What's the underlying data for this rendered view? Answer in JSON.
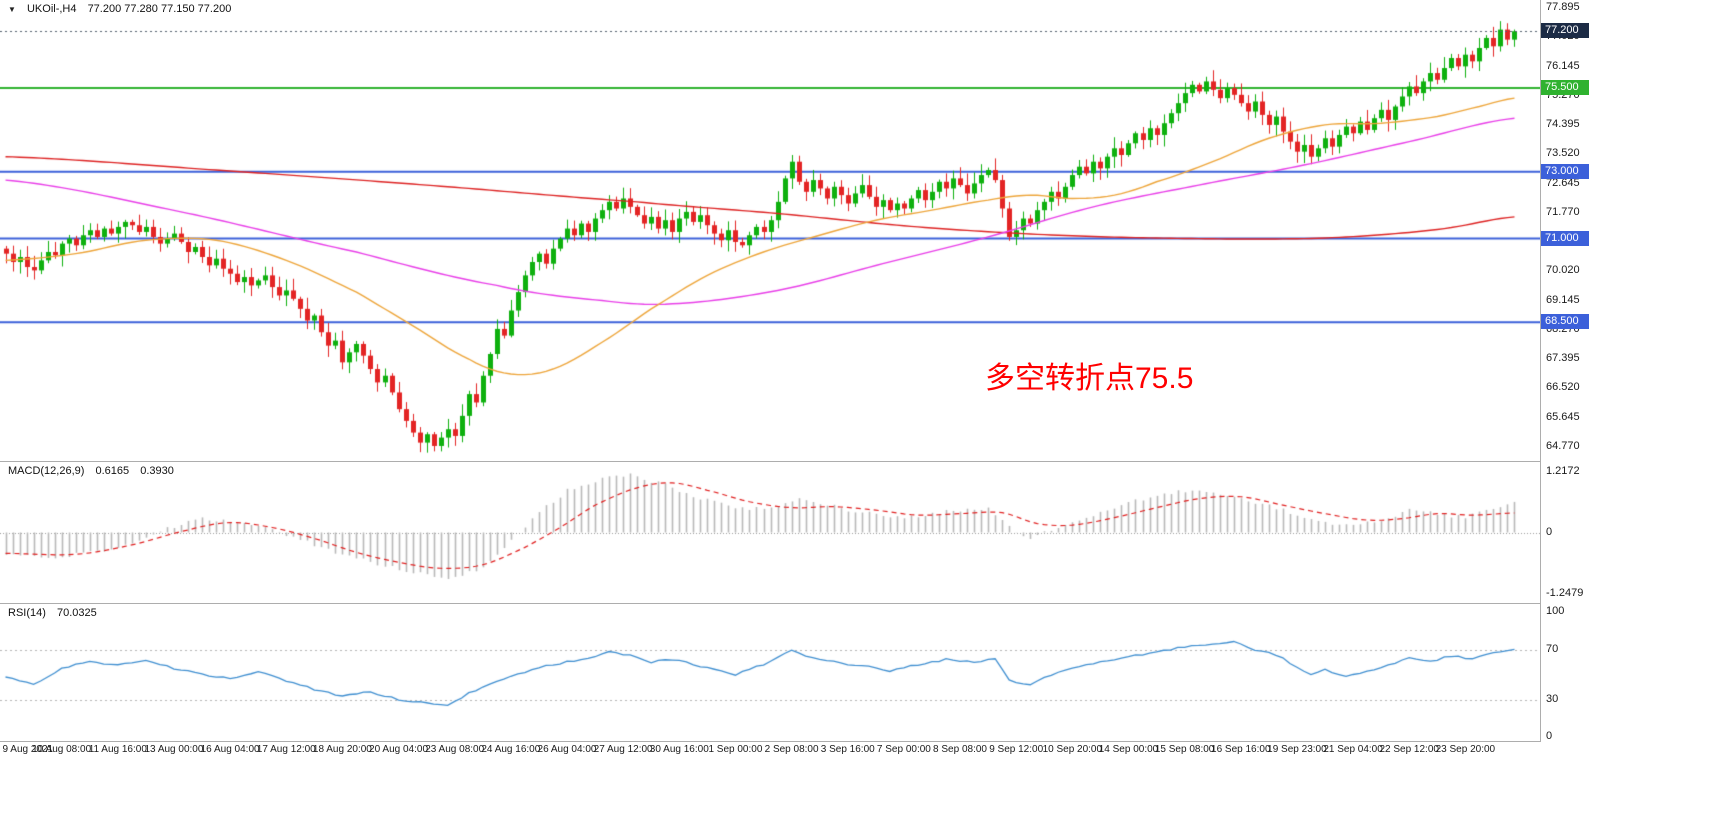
{
  "window": {
    "header": {
      "marker_icon": "▼",
      "symbol_period": "UKOil-,H4",
      "ohlc": "77.200 77.280 77.150 77.200"
    },
    "annotation": {
      "text": "多空转折点75.5",
      "color": "#ff0000"
    }
  },
  "colors": {
    "bull": "#0eb00e",
    "bear": "#e32424",
    "macd_hist": "#b9b9b9",
    "macd_signal": "#e02020",
    "rsi_line": "#3e8ed0",
    "separator": "#adadad",
    "axis_text": "#1a1a1a"
  },
  "chart_data": {
    "type": "candlestick",
    "title": "UKOil-,H4",
    "symbol": "UKOil-",
    "timeframe": "H4",
    "num_bars": 216,
    "bars_per_label": 8,
    "first_open": 70.7,
    "ylim": [
      64.35,
      78.135
    ],
    "y_ticks": [
      77.895,
      77.02,
      76.145,
      75.27,
      74.395,
      73.52,
      72.645,
      71.77,
      70.895,
      70.02,
      69.145,
      68.27,
      67.395,
      66.52,
      65.645,
      64.77
    ],
    "x_labels": [
      "9 Aug 2021",
      "10 Aug 08:00",
      "11 Aug 16:00",
      "13 Aug 00:00",
      "16 Aug 04:00",
      "17 Aug 12:00",
      "18 Aug 20:00",
      "20 Aug 04:00",
      "23 Aug 08:00",
      "24 Aug 16:00",
      "26 Aug 04:00",
      "27 Aug 12:00",
      "30 Aug 16:00",
      "1 Sep 00:00",
      "2 Sep 08:00",
      "3 Sep 16:00",
      "7 Sep 00:00",
      "8 Sep 08:00",
      "9 Sep 12:00",
      "10 Sep 20:00",
      "14 Sep 00:00",
      "15 Sep 08:00",
      "16 Sep 16:00",
      "19 Sep 23:00",
      "21 Sep 04:00",
      "22 Sep 12:00",
      "23 Sep 20:00"
    ],
    "current_bar_ohlc": {
      "open": "77.200",
      "high": "77.280",
      "low": "77.150",
      "close": "77.200"
    },
    "closes": [
      70.55,
      70.3,
      70.45,
      70.15,
      70.05,
      70.35,
      70.6,
      70.5,
      70.85,
      71.0,
      70.8,
      71.1,
      71.25,
      71.05,
      71.3,
      71.15,
      71.35,
      71.5,
      71.4,
      71.2,
      71.35,
      71.05,
      70.85,
      71.0,
      71.15,
      70.9,
      70.6,
      70.75,
      70.45,
      70.2,
      70.4,
      70.1,
      69.95,
      69.7,
      69.85,
      69.6,
      69.75,
      69.9,
      69.55,
      69.3,
      69.45,
      69.2,
      68.9,
      68.55,
      68.7,
      68.2,
      67.8,
      67.95,
      67.3,
      67.6,
      67.85,
      67.5,
      67.1,
      66.7,
      66.9,
      66.4,
      65.9,
      65.55,
      65.2,
      64.9,
      65.15,
      64.8,
      65.05,
      65.3,
      65.1,
      65.7,
      66.35,
      66.1,
      66.9,
      67.55,
      68.3,
      68.1,
      68.85,
      69.4,
      69.9,
      70.3,
      70.55,
      70.25,
      70.7,
      71.0,
      71.3,
      71.1,
      71.45,
      71.2,
      71.6,
      71.85,
      72.1,
      71.9,
      72.2,
      71.95,
      71.7,
      71.45,
      71.65,
      71.3,
      71.55,
      71.2,
      71.6,
      71.8,
      71.5,
      71.7,
      71.4,
      71.15,
      70.95,
      71.25,
      70.9,
      70.8,
      71.1,
      71.35,
      71.2,
      71.55,
      72.1,
      72.8,
      73.3,
      72.7,
      72.4,
      72.75,
      72.5,
      72.2,
      72.55,
      72.3,
      72.05,
      72.35,
      72.6,
      72.25,
      71.95,
      72.15,
      71.85,
      72.05,
      71.9,
      72.2,
      72.45,
      72.15,
      72.4,
      72.7,
      72.5,
      72.8,
      72.6,
      72.35,
      72.65,
      72.9,
      73.05,
      72.75,
      71.9,
      71.05,
      71.25,
      71.6,
      71.45,
      71.85,
      72.1,
      72.4,
      72.2,
      72.55,
      72.9,
      73.15,
      72.95,
      73.3,
      73.1,
      73.45,
      73.7,
      73.5,
      73.85,
      74.15,
      73.95,
      74.3,
      74.1,
      74.45,
      74.75,
      75.05,
      75.35,
      75.6,
      75.4,
      75.7,
      75.45,
      75.2,
      75.5,
      75.3,
      75.05,
      74.8,
      75.1,
      74.7,
      74.4,
      74.65,
      74.2,
      73.9,
      73.6,
      73.8,
      73.45,
      73.7,
      74.0,
      73.75,
      74.1,
      74.35,
      74.15,
      74.5,
      74.25,
      74.6,
      74.85,
      74.55,
      74.95,
      75.25,
      75.55,
      75.35,
      75.7,
      75.95,
      75.75,
      76.1,
      76.4,
      76.15,
      76.5,
      76.3,
      76.7,
      77.0,
      76.75,
      77.25,
      76.95,
      77.2
    ],
    "horizontal_lines": [
      {
        "price": 77.2,
        "label": "77.200",
        "style": "dotted",
        "role": "current-price",
        "line_color": "#55606e",
        "tag_color": "#1c2b45"
      },
      {
        "price": 75.5,
        "label": "75.500",
        "style": "solid",
        "role": "pivot-level",
        "line_color": "#2fb22f",
        "tag_color": "#2fb22f"
      },
      {
        "price": 73.0,
        "label": "73.000",
        "style": "solid",
        "role": "resistance-level",
        "line_color": "#3c60da",
        "tag_color": "#3c60da"
      },
      {
        "price": 71.0,
        "label": "71.000",
        "style": "solid",
        "role": "support-level",
        "line_color": "#3c60da",
        "tag_color": "#3c60da"
      },
      {
        "price": 68.5,
        "label": "68.500",
        "style": "solid",
        "role": "support-level",
        "line_color": "#3c60da",
        "tag_color": "#3c60da"
      }
    ],
    "moving_averages": [
      {
        "name": "ma-slow-red",
        "color": "#dd2222",
        "points": [
          [
            0,
            73.45
          ],
          [
            30,
            73.05
          ],
          [
            60,
            72.6
          ],
          [
            90,
            72.1
          ],
          [
            110,
            71.75
          ],
          [
            130,
            71.35
          ],
          [
            150,
            71.1
          ],
          [
            170,
            71.0
          ],
          [
            185,
            71.0
          ],
          [
            195,
            71.1
          ],
          [
            205,
            71.3
          ],
          [
            215,
            71.65
          ]
        ]
      },
      {
        "name": "ma-mid-magenta",
        "color": "#e83ee8",
        "points": [
          [
            0,
            72.75
          ],
          [
            25,
            71.8
          ],
          [
            50,
            70.6
          ],
          [
            70,
            69.6
          ],
          [
            85,
            69.15
          ],
          [
            95,
            69.05
          ],
          [
            110,
            69.45
          ],
          [
            125,
            70.25
          ],
          [
            140,
            71.05
          ],
          [
            155,
            71.95
          ],
          [
            170,
            72.6
          ],
          [
            185,
            73.2
          ],
          [
            200,
            73.9
          ],
          [
            215,
            74.6
          ]
        ]
      },
      {
        "name": "ma-fast-orange",
        "color": "#eda53a",
        "points": [
          [
            0,
            70.35
          ],
          [
            10,
            70.55
          ],
          [
            20,
            70.95
          ],
          [
            30,
            70.95
          ],
          [
            40,
            70.35
          ],
          [
            50,
            69.4
          ],
          [
            58,
            68.4
          ],
          [
            66,
            67.4
          ],
          [
            72,
            66.95
          ],
          [
            78,
            67.1
          ],
          [
            85,
            67.9
          ],
          [
            92,
            68.9
          ],
          [
            100,
            69.9
          ],
          [
            108,
            70.6
          ],
          [
            116,
            71.1
          ],
          [
            124,
            71.55
          ],
          [
            132,
            71.85
          ],
          [
            140,
            72.15
          ],
          [
            146,
            72.3
          ],
          [
            152,
            72.2
          ],
          [
            158,
            72.3
          ],
          [
            164,
            72.7
          ],
          [
            172,
            73.3
          ],
          [
            180,
            74.0
          ],
          [
            188,
            74.4
          ],
          [
            196,
            74.45
          ],
          [
            204,
            74.65
          ],
          [
            210,
            74.95
          ],
          [
            215,
            75.2
          ]
        ]
      }
    ],
    "macd": {
      "label": "MACD(12,26,9)",
      "value_macd": "0.6165",
      "value_signal": "0.3930",
      "macd_value": 0.6165,
      "signal_value": 0.393,
      "ylim": [
        -1.42,
        1.42
      ],
      "y_ticks": [
        {
          "value": 1.2172,
          "label": "1.2172"
        },
        {
          "value": 0,
          "label": "0"
        },
        {
          "value": -1.2479,
          "label": "-1.2479"
        }
      ],
      "hist_points": [
        [
          0,
          -0.45
        ],
        [
          8,
          -0.5
        ],
        [
          16,
          -0.3
        ],
        [
          22,
          0.05
        ],
        [
          28,
          0.28
        ],
        [
          34,
          0.2
        ],
        [
          40,
          -0.05
        ],
        [
          46,
          -0.35
        ],
        [
          52,
          -0.6
        ],
        [
          58,
          -0.8
        ],
        [
          63,
          -0.95
        ],
        [
          68,
          -0.7
        ],
        [
          72,
          -0.15
        ],
        [
          76,
          0.4
        ],
        [
          80,
          0.85
        ],
        [
          85,
          1.1
        ],
        [
          89,
          1.15
        ],
        [
          94,
          0.95
        ],
        [
          100,
          0.65
        ],
        [
          106,
          0.45
        ],
        [
          110,
          0.55
        ],
        [
          113,
          0.7
        ],
        [
          117,
          0.55
        ],
        [
          122,
          0.4
        ],
        [
          128,
          0.3
        ],
        [
          134,
          0.42
        ],
        [
          140,
          0.5
        ],
        [
          143,
          0.1
        ],
        [
          146,
          -0.12
        ],
        [
          150,
          0.1
        ],
        [
          155,
          0.35
        ],
        [
          160,
          0.6
        ],
        [
          166,
          0.8
        ],
        [
          170,
          0.85
        ],
        [
          175,
          0.7
        ],
        [
          180,
          0.55
        ],
        [
          184,
          0.35
        ],
        [
          188,
          0.2
        ],
        [
          192,
          0.12
        ],
        [
          196,
          0.25
        ],
        [
          200,
          0.45
        ],
        [
          205,
          0.35
        ],
        [
          208,
          0.3
        ],
        [
          212,
          0.5
        ],
        [
          215,
          0.6165
        ]
      ],
      "signal_points": [
        [
          0,
          -0.42
        ],
        [
          10,
          -0.44
        ],
        [
          18,
          -0.25
        ],
        [
          26,
          0.05
        ],
        [
          32,
          0.2
        ],
        [
          38,
          0.1
        ],
        [
          44,
          -0.12
        ],
        [
          50,
          -0.4
        ],
        [
          56,
          -0.6
        ],
        [
          62,
          -0.72
        ],
        [
          68,
          -0.65
        ],
        [
          74,
          -0.3
        ],
        [
          79,
          0.1
        ],
        [
          84,
          0.55
        ],
        [
          90,
          0.9
        ],
        [
          95,
          1.0
        ],
        [
          100,
          0.85
        ],
        [
          106,
          0.62
        ],
        [
          112,
          0.5
        ],
        [
          118,
          0.52
        ],
        [
          124,
          0.45
        ],
        [
          130,
          0.35
        ],
        [
          136,
          0.38
        ],
        [
          142,
          0.4
        ],
        [
          147,
          0.18
        ],
        [
          152,
          0.15
        ],
        [
          158,
          0.3
        ],
        [
          164,
          0.5
        ],
        [
          170,
          0.68
        ],
        [
          176,
          0.72
        ],
        [
          182,
          0.55
        ],
        [
          188,
          0.38
        ],
        [
          194,
          0.25
        ],
        [
          199,
          0.28
        ],
        [
          204,
          0.38
        ],
        [
          209,
          0.35
        ],
        [
          215,
          0.393
        ]
      ]
    },
    "rsi": {
      "label": "RSI(14)",
      "value": "70.0325",
      "rsi_value": 70.0325,
      "ylim": [
        0,
        100
      ],
      "levels": [
        70,
        30
      ],
      "y_ticks": [
        {
          "value": 100,
          "label": "100"
        },
        {
          "value": 70,
          "label": "70"
        },
        {
          "value": 30,
          "label": "30"
        },
        {
          "value": 0,
          "label": "0"
        }
      ],
      "points": [
        [
          0,
          48
        ],
        [
          4,
          42
        ],
        [
          8,
          55
        ],
        [
          12,
          60
        ],
        [
          16,
          58
        ],
        [
          20,
          62
        ],
        [
          24,
          55
        ],
        [
          28,
          50
        ],
        [
          32,
          47
        ],
        [
          36,
          52
        ],
        [
          40,
          45
        ],
        [
          44,
          38
        ],
        [
          48,
          33
        ],
        [
          52,
          36
        ],
        [
          56,
          30
        ],
        [
          60,
          27
        ],
        [
          63,
          25
        ],
        [
          66,
          35
        ],
        [
          70,
          45
        ],
        [
          74,
          52
        ],
        [
          78,
          58
        ],
        [
          82,
          62
        ],
        [
          86,
          68
        ],
        [
          89,
          65
        ],
        [
          92,
          60
        ],
        [
          96,
          62
        ],
        [
          100,
          55
        ],
        [
          104,
          50
        ],
        [
          108,
          58
        ],
        [
          112,
          70
        ],
        [
          114,
          65
        ],
        [
          118,
          60
        ],
        [
          122,
          57
        ],
        [
          126,
          53
        ],
        [
          130,
          58
        ],
        [
          134,
          62
        ],
        [
          138,
          60
        ],
        [
          141,
          63
        ],
        [
          143,
          45
        ],
        [
          146,
          42
        ],
        [
          150,
          52
        ],
        [
          154,
          58
        ],
        [
          158,
          62
        ],
        [
          162,
          66
        ],
        [
          166,
          70
        ],
        [
          169,
          73
        ],
        [
          172,
          74
        ],
        [
          175,
          76
        ],
        [
          178,
          70
        ],
        [
          181,
          66
        ],
        [
          184,
          56
        ],
        [
          186,
          50
        ],
        [
          188,
          54
        ],
        [
          191,
          48
        ],
        [
          194,
          52
        ],
        [
          197,
          58
        ],
        [
          200,
          63
        ],
        [
          203,
          60
        ],
        [
          206,
          65
        ],
        [
          209,
          62
        ],
        [
          212,
          68
        ],
        [
          215,
          70.03
        ]
      ]
    }
  }
}
